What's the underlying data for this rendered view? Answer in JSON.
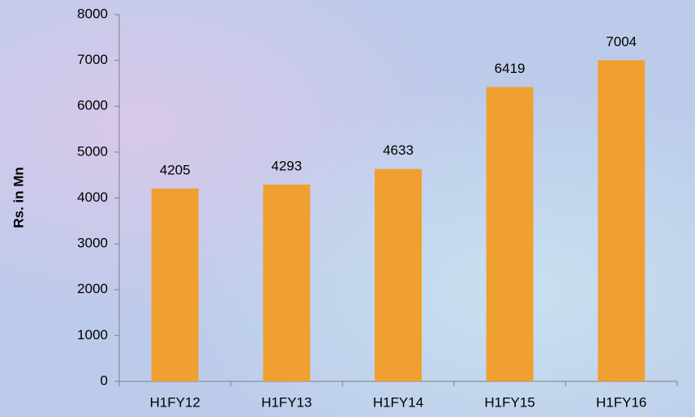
{
  "chart_data": {
    "type": "bar",
    "y_label": "Rs. in Mn",
    "categories": [
      "H1FY12",
      "H1FY13",
      "H1FY14",
      "H1FY15",
      "H1FY16"
    ],
    "values": [
      4205,
      4293,
      4633,
      6419,
      7004
    ],
    "color": "#f0a030",
    "ylim": [
      0,
      8000
    ],
    "yticks": [
      0,
      1000,
      2000,
      3000,
      4000,
      5000,
      6000,
      7000,
      8000
    ],
    "grid": false,
    "data_labels": true
  }
}
